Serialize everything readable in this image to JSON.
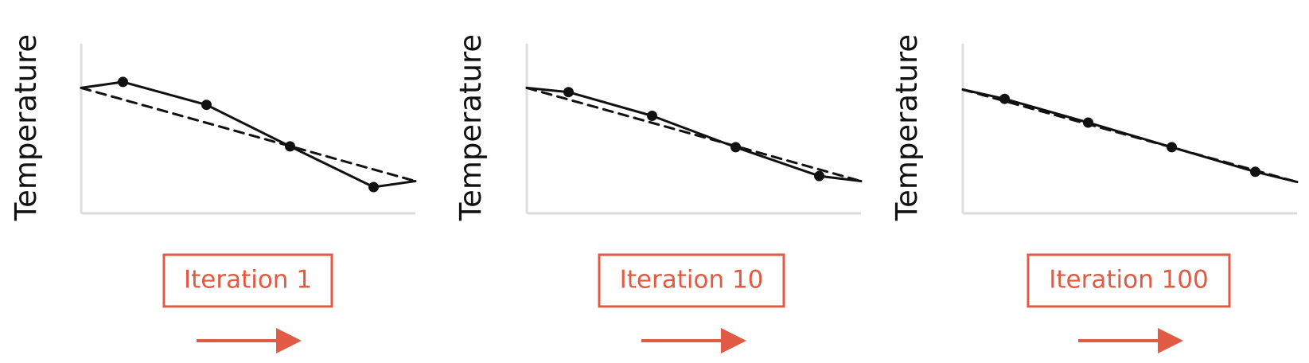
{
  "colors": {
    "axis": "#dcdcdc",
    "line": "#111111",
    "accent": "#e05a44"
  },
  "chart_data": [
    {
      "type": "line",
      "ylabel": "Temperature",
      "iteration_label": "Iteration 1",
      "xlim": [
        0,
        1
      ],
      "ylim": [
        0,
        1
      ],
      "grid": false,
      "series": [
        {
          "style": "solid",
          "markers": true,
          "points": [
            [
              0,
              0.74
            ],
            [
              0.125,
              0.775
            ],
            [
              0.375,
              0.64
            ],
            [
              0.625,
              0.395
            ],
            [
              0.875,
              0.155
            ],
            [
              1,
              0.19
            ]
          ],
          "marker_indices": [
            1,
            2,
            3,
            4
          ]
        },
        {
          "style": "dashed",
          "markers": false,
          "points": [
            [
              0,
              0.74
            ],
            [
              1,
              0.19
            ]
          ]
        }
      ]
    },
    {
      "type": "line",
      "ylabel": "Temperature",
      "iteration_label": "Iteration 10",
      "xlim": [
        0,
        1
      ],
      "ylim": [
        0,
        1
      ],
      "grid": false,
      "series": [
        {
          "style": "solid",
          "markers": true,
          "points": [
            [
              0,
              0.74
            ],
            [
              0.125,
              0.715
            ],
            [
              0.375,
              0.575
            ],
            [
              0.625,
              0.39
            ],
            [
              0.875,
              0.22
            ],
            [
              1,
              0.19
            ]
          ],
          "marker_indices": [
            1,
            2,
            3,
            4
          ]
        },
        {
          "style": "dashed",
          "markers": false,
          "points": [
            [
              0,
              0.74
            ],
            [
              1,
              0.19
            ]
          ]
        }
      ]
    },
    {
      "type": "line",
      "ylabel": "Temperature",
      "iteration_label": "Iteration 100",
      "xlim": [
        0,
        1
      ],
      "ylim": [
        0,
        1
      ],
      "grid": false,
      "series": [
        {
          "style": "solid",
          "markers": true,
          "points": [
            [
              0,
              0.73
            ],
            [
              0.125,
              0.675
            ],
            [
              0.375,
              0.535
            ],
            [
              0.625,
              0.39
            ],
            [
              0.875,
              0.245
            ],
            [
              1,
              0.185
            ]
          ],
          "marker_indices": [
            1,
            2,
            3,
            4
          ]
        },
        {
          "style": "dashed",
          "markers": false,
          "points": [
            [
              0,
              0.73
            ],
            [
              1,
              0.185
            ]
          ]
        }
      ]
    }
  ]
}
